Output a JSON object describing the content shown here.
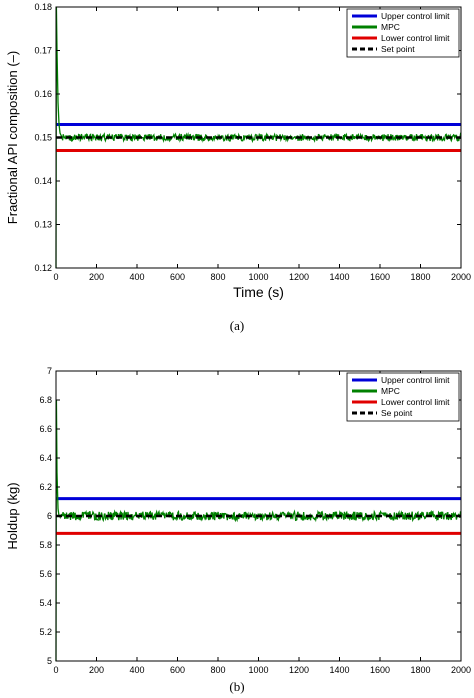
{
  "figure": {
    "panels": [
      {
        "label": "(a)"
      },
      {
        "label": "(b)"
      }
    ]
  },
  "chart_data": [
    {
      "type": "line",
      "xlabel": "Time (s)",
      "ylabel": "Fractional API composition (–)",
      "xlim": [
        0,
        2000
      ],
      "ylim": [
        0.12,
        0.18
      ],
      "xticks": [
        0,
        200,
        400,
        600,
        800,
        1000,
        1200,
        1400,
        1600,
        1800,
        2000
      ],
      "xtick_labels": [
        "0",
        "200",
        "400",
        "600",
        "800",
        "1000",
        "1200",
        "1400",
        "1600",
        "1800",
        "2000"
      ],
      "yticks": [
        0.12,
        0.13,
        0.14,
        0.15,
        0.16,
        0.17,
        0.18
      ],
      "ytick_labels": [
        "0.12",
        "0.13",
        "0.14",
        "0.15",
        "0.16",
        "0.17",
        "0.18"
      ],
      "legend_position": "top-right",
      "grid": false,
      "series": [
        {
          "name": "Upper control limit",
          "color": "#0000d8",
          "style": "solid",
          "x": [
            0,
            2000
          ],
          "y": [
            0.153,
            0.153
          ]
        },
        {
          "name": "MPC",
          "color": "#008000",
          "style": "solid",
          "kind": "noisy",
          "x": [
            0,
            2,
            5,
            10,
            15,
            20,
            30,
            2000
          ],
          "y": [
            0.12,
            0.18,
            0.17,
            0.158,
            0.153,
            0.151,
            0.15,
            0.15
          ],
          "noise_amplitude": 0.0008
        },
        {
          "name": "Lower control limit",
          "color": "#e00000",
          "style": "solid",
          "x": [
            0,
            2000
          ],
          "y": [
            0.147,
            0.147
          ]
        },
        {
          "name": "Set point",
          "color": "#000000",
          "style": "dashed",
          "x": [
            0,
            2000
          ],
          "y": [
            0.15,
            0.15
          ]
        }
      ]
    },
    {
      "type": "line",
      "xlabel": "Time (s)",
      "ylabel": "Holdup (kg)",
      "xlim": [
        0,
        2000
      ],
      "ylim": [
        5,
        7
      ],
      "xticks": [
        0,
        200,
        400,
        600,
        800,
        1000,
        1200,
        1400,
        1600,
        1800,
        2000
      ],
      "xtick_labels": [
        "0",
        "200",
        "400",
        "600",
        "800",
        "1000",
        "1200",
        "1400",
        "1600",
        "1800",
        "2000"
      ],
      "yticks": [
        5,
        5.2,
        5.4,
        5.6,
        5.8,
        6,
        6.2,
        6.4,
        6.6,
        6.8,
        7
      ],
      "ytick_labels": [
        "5",
        "5.2",
        "5.4",
        "5.6",
        "5.8",
        "6",
        "6.2",
        "6.4",
        "6.6",
        "6.8",
        "7"
      ],
      "legend_position": "top-right",
      "grid": false,
      "series": [
        {
          "name": "Upper control limit",
          "color": "#0000d8",
          "style": "solid",
          "x": [
            0,
            2000
          ],
          "y": [
            6.12,
            6.12
          ]
        },
        {
          "name": "MPC",
          "color": "#008000",
          "style": "solid",
          "kind": "noisy",
          "x": [
            0,
            2,
            5,
            10,
            15,
            2000
          ],
          "y": [
            5,
            6.8,
            6.3,
            6.05,
            6.0,
            6.0
          ],
          "noise_amplitude": 0.03
        },
        {
          "name": "Lower control limit",
          "color": "#e00000",
          "style": "solid",
          "x": [
            0,
            2000
          ],
          "y": [
            5.88,
            5.88
          ]
        },
        {
          "name": "Se point",
          "color": "#000000",
          "style": "dashed",
          "x": [
            0,
            2000
          ],
          "y": [
            6.0,
            6.0
          ]
        }
      ]
    }
  ]
}
